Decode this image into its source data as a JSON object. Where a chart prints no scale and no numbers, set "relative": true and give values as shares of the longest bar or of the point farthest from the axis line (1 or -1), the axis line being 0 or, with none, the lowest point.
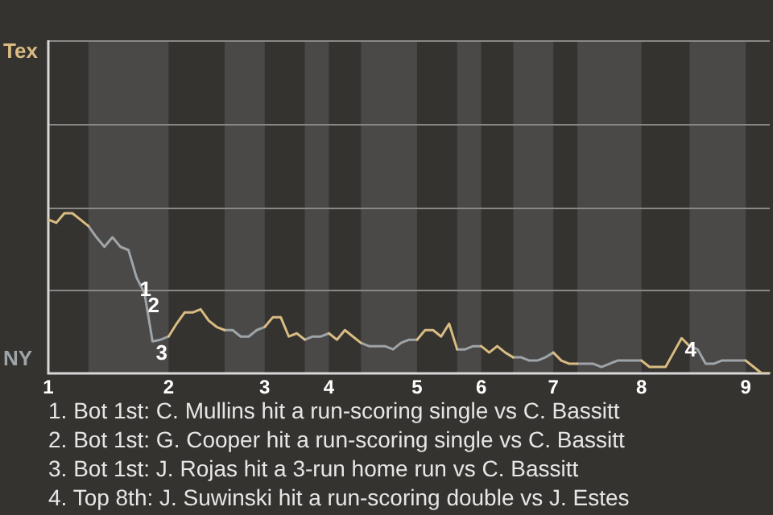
{
  "chart_data": {
    "type": "line",
    "relative": true,
    "categories": [
      "1",
      null,
      null,
      null,
      null,
      null,
      null,
      null,
      null,
      null,
      null,
      null,
      null,
      null,
      null,
      "2",
      null,
      null,
      null,
      null,
      null,
      null,
      null,
      null,
      null,
      null,
      null,
      "3",
      null,
      null,
      null,
      null,
      null,
      null,
      null,
      "4",
      null,
      null,
      null,
      null,
      null,
      null,
      null,
      null,
      null,
      null,
      "5",
      null,
      null,
      null,
      null,
      null,
      null,
      null,
      "6",
      null,
      null,
      null,
      null,
      null,
      null,
      null,
      null,
      "7",
      null,
      null,
      null,
      null,
      null,
      null,
      null,
      null,
      null,
      null,
      "8",
      null,
      null,
      null,
      null,
      null,
      null,
      null,
      null,
      null,
      null,
      null,
      null,
      "9",
      null,
      null,
      null
    ],
    "series": [
      {
        "name": "Tex",
        "color": "#d8bc82",
        "values": [
          0.96,
          0.94,
          1,
          1,
          0.96,
          0.92,
          null,
          null,
          null,
          null,
          null,
          null,
          null,
          null,
          null,
          0.23,
          0.31,
          0.38,
          0.38,
          0.4,
          0.33,
          0.29,
          0.27,
          null,
          null,
          null,
          null,
          0.29,
          0.35,
          0.35,
          0.23,
          0.25,
          0.21,
          null,
          null,
          0.25,
          0.21,
          0.27,
          0.23,
          0.19,
          null,
          null,
          null,
          null,
          null,
          null,
          0.21,
          0.27,
          0.27,
          0.23,
          0.31,
          0.15,
          null,
          null,
          0.17,
          0.13,
          0.17,
          0.13,
          0.1,
          null,
          null,
          null,
          null,
          0.13,
          0.08,
          0.06,
          0.06,
          null,
          null,
          null,
          null,
          null,
          null,
          null,
          0.08,
          0.04,
          0.04,
          0.04,
          0.13,
          0.22,
          0.17,
          null,
          null,
          null,
          null,
          null,
          null,
          0.08,
          0.04,
          0,
          0
        ]
      },
      {
        "name": "NY",
        "color": "#9ea4a8",
        "values": [
          null,
          null,
          null,
          null,
          null,
          0.92,
          0.85,
          0.79,
          0.85,
          0.79,
          0.77,
          0.6,
          0.5,
          0.2,
          0.21,
          0.23,
          null,
          null,
          null,
          null,
          null,
          null,
          0.27,
          0.27,
          0.23,
          0.23,
          0.27,
          0.29,
          null,
          null,
          null,
          null,
          0.21,
          0.23,
          0.23,
          0.25,
          null,
          null,
          null,
          0.19,
          0.17,
          0.17,
          0.17,
          0.15,
          0.19,
          0.21,
          0.21,
          null,
          null,
          null,
          null,
          0.15,
          0.15,
          0.17,
          0.17,
          null,
          null,
          null,
          0.1,
          0.1,
          0.08,
          0.08,
          0.1,
          0.13,
          null,
          null,
          0.06,
          0.06,
          0.06,
          0.04,
          0.06,
          0.08,
          0.08,
          0.08,
          0.08,
          null,
          null,
          null,
          null,
          null,
          0.17,
          0.15,
          0.06,
          0.06,
          0.08,
          0.08,
          0.08,
          0.08,
          null,
          null,
          null
        ]
      }
    ],
    "legend": "left",
    "ref_lines": [
      {
        "axis": "y",
        "value": 0.52,
        "color": "#8a8886"
      },
      {
        "axis": "y",
        "value": 1.04,
        "color": "#8a8886"
      },
      {
        "axis": "y",
        "value": 1.56,
        "color": "#8a8886"
      },
      {
        "axis": "y",
        "value": 2.08,
        "color": "#8a8886"
      }
    ],
    "marker": "none",
    "line_style": "solid",
    "annotations": [
      {
        "text": "1",
        "y": 0.6
      },
      {
        "text": "2",
        "y": 0.5
      },
      {
        "text": "3",
        "y": 0.2
      },
      {
        "text": "4",
        "y": 0.22
      },
      "1. Bot 1st: C. Mullins hit a run-scoring single vs C. Bassitt",
      "2. Bot 1st: G. Cooper hit a run-scoring single vs C. Bassitt",
      "3. Bot 1st: J. Rojas hit a 3-run home run vs C. Bassitt",
      "4. Top 8th: J. Suwinski hit a run-scoring double vs J. Estes"
    ]
  }
}
